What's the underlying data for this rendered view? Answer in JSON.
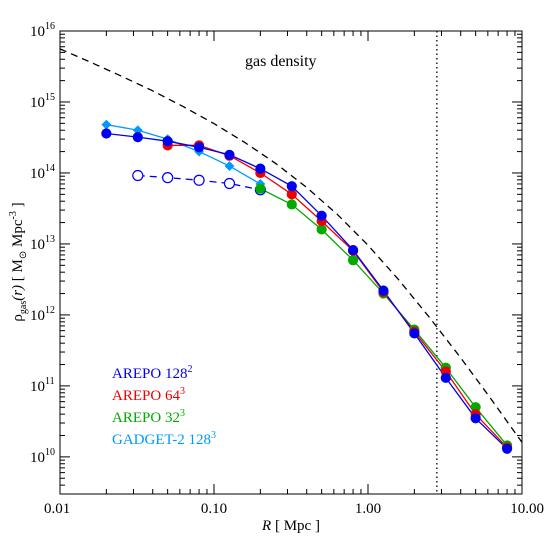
{
  "chart_data": {
    "type": "line",
    "title": "",
    "annotation": "gas density",
    "xlabel": {
      "var": "R",
      "unit": "[ Mpc ]"
    },
    "ylabel": {
      "rho": "ρ",
      "sub": "gas",
      "arg": "(r)",
      "unit_open": "[ M",
      "odot": "⊙",
      "unit_mid": " Mpc",
      "sup": "-3",
      "unit_close": " ]"
    },
    "xscale": "log",
    "yscale": "log",
    "xlim": [
      0.01,
      10.0
    ],
    "ylim": [
      3000000000.0,
      1e+16
    ],
    "xticks": [
      {
        "value": 0.01,
        "label": "0.01"
      },
      {
        "value": 0.1,
        "label": "0.10"
      },
      {
        "value": 1.0,
        "label": "1.00"
      },
      {
        "value": 10.0,
        "label": "10.00"
      }
    ],
    "yticks": [
      {
        "value": 10000000000.0,
        "base": "10",
        "exp": "10"
      },
      {
        "value": 100000000000.0,
        "base": "10",
        "exp": "11"
      },
      {
        "value": 1000000000000.0,
        "base": "10",
        "exp": "12"
      },
      {
        "value": 10000000000000.0,
        "base": "10",
        "exp": "13"
      },
      {
        "value": 100000000000000.0,
        "base": "10",
        "exp": "14"
      },
      {
        "value": 1000000000000000.0,
        "base": "10",
        "exp": "15"
      },
      {
        "value": 1e+16,
        "base": "10",
        "exp": "16"
      }
    ],
    "vline": {
      "x": 2.8,
      "style": "dotted"
    },
    "series": [
      {
        "name": "AREPO",
        "res": "128",
        "exp": "2",
        "color": "#0000ee",
        "marker": "circle",
        "line": "solid",
        "x": [
          0.02,
          0.032,
          0.05,
          0.08,
          0.126,
          0.2,
          0.32,
          0.5,
          0.8,
          1.26,
          2.0,
          3.2,
          5.0,
          8.0
        ],
        "y": [
          360000000000000.0,
          320000000000000.0,
          280000000000000.0,
          230000000000000.0,
          180000000000000.0,
          115000000000000.0,
          65000000000000.0,
          25000000000000.0,
          8200000000000.0,
          2200000000000.0,
          550000000000.0,
          130000000000.0,
          35000000000.0,
          13000000000.0
        ]
      },
      {
        "name": "AREPO",
        "res": "64",
        "exp": "3",
        "color": "#ee0000",
        "marker": "circle",
        "line": "solid",
        "x": [
          0.05,
          0.08,
          0.126,
          0.2,
          0.32,
          0.5,
          0.8,
          1.26,
          2.0,
          3.2,
          5.0,
          8.0
        ],
        "y": [
          245000000000000.0,
          245000000000000.0,
          175000000000000.0,
          100000000000000.0,
          50000000000000.0,
          21000000000000.0,
          8000000000000.0,
          2100000000000.0,
          580000000000.0,
          160000000000.0,
          40000000000.0,
          13500000000.0
        ]
      },
      {
        "name": "AREPO",
        "res": "32",
        "exp": "3",
        "color": "#00aa00",
        "marker": "circle",
        "line": "solid",
        "x": [
          0.2,
          0.32,
          0.5,
          0.8,
          1.26,
          2.0,
          3.2,
          5.0,
          8.0
        ],
        "y": [
          60000000000000.0,
          36000000000000.0,
          16000000000000.0,
          5900000000000.0,
          2000000000000.0,
          620000000000.0,
          180000000000.0,
          50000000000.0,
          14500000000.0
        ]
      },
      {
        "name": "GADGET-2",
        "res": "128",
        "exp": "3",
        "color": "#0099ff",
        "marker": "diamond",
        "line": "solid",
        "x": [
          0.02,
          0.032,
          0.05,
          0.08,
          0.126,
          0.2
        ],
        "y": [
          480000000000000.0,
          400000000000000.0,
          300000000000000.0,
          200000000000000.0,
          125000000000000.0,
          70000000000000.0
        ]
      },
      {
        "color": "#0000ee",
        "marker": "open-circle",
        "line": "dashed",
        "x": [
          0.032,
          0.05,
          0.08,
          0.126,
          0.2
        ],
        "y": [
          92000000000000.0,
          86000000000000.0,
          79000000000000.0,
          71000000000000.0,
          58000000000000.0
        ]
      },
      {
        "color": "#000000",
        "marker": "none",
        "line": "dashed",
        "x": [
          0.01,
          0.0158,
          0.0251,
          0.0398,
          0.0631,
          0.1,
          0.158,
          0.251,
          0.398,
          0.631,
          1.0,
          1.58,
          2.51,
          3.98,
          6.31,
          10.0
        ],
        "y": [
          5600000000000000.0,
          3630000000000000.0,
          2310000000000000.0,
          1440000000000000.0,
          860000000000000.0,
          496000000000000.0,
          270000000000000.0,
          137000000000000.0,
          63000000000000.0,
          26200000000000.0,
          9600000000000.0,
          3130000000000.0,
          920000000000.0,
          252000000000.0,
          65000000000.0,
          16000000000.0
        ]
      }
    ]
  }
}
